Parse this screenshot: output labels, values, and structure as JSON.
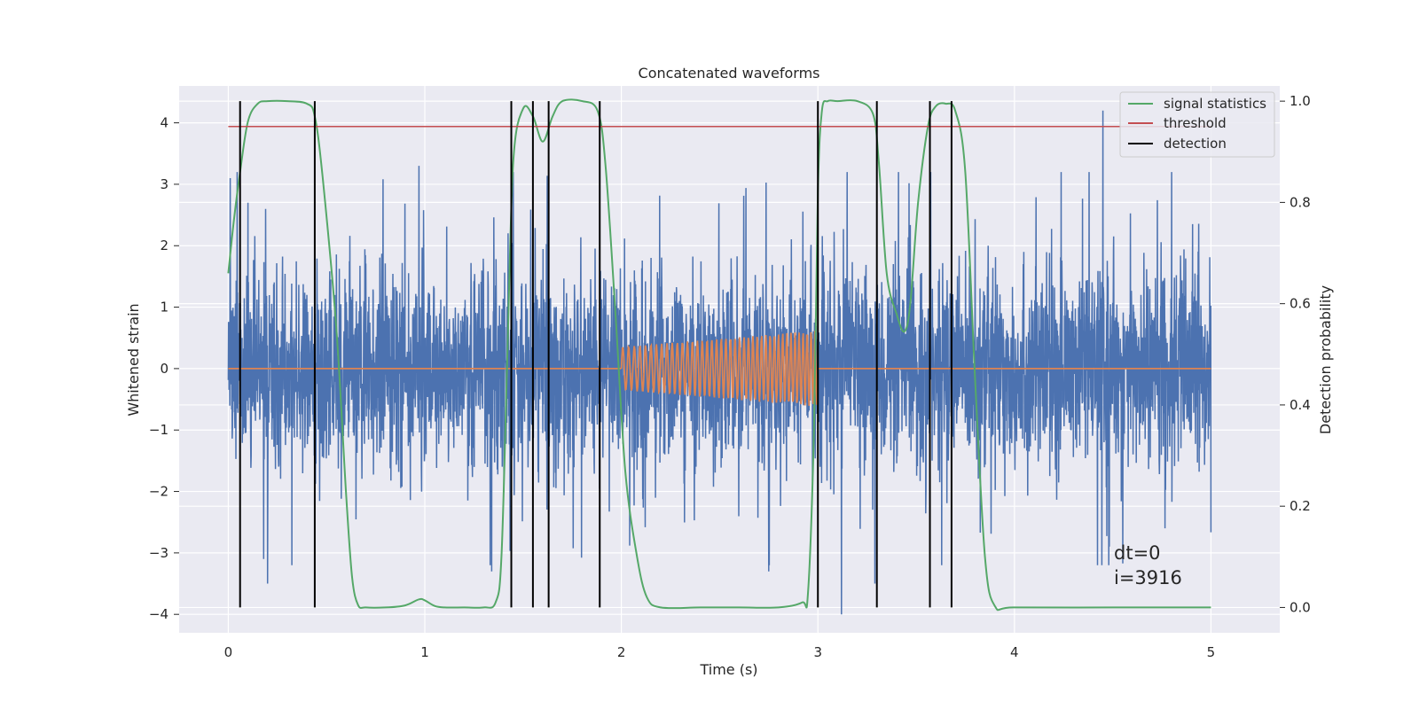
{
  "chart_data": {
    "type": "line",
    "title": "Concatenated waveforms",
    "xlabel": "Time (s)",
    "ylabel": "Whitened strain",
    "y2label": "Detection probability",
    "xlim": [
      -0.25,
      5.35
    ],
    "ylim": [
      -4.3,
      4.6
    ],
    "y2lim": [
      -0.05,
      1.03
    ],
    "xticks": [
      0,
      1,
      2,
      3,
      4,
      5
    ],
    "xtick_labels": [
      "0",
      "1",
      "2",
      "3",
      "4",
      "5"
    ],
    "yticks": [
      4,
      3,
      2,
      1,
      0,
      -1,
      -2,
      -3,
      -4
    ],
    "ytick_labels": [
      "4",
      "3",
      "2",
      "1",
      "0",
      "−1",
      "−2",
      "−3",
      "−4"
    ],
    "y2ticks": [
      1.0,
      0.8,
      0.6,
      0.4,
      0.2,
      0.0
    ],
    "y2tick_labels": [
      "1.0",
      "0.8",
      "0.6",
      "0.4",
      "0.2",
      "0.0"
    ],
    "grid": true,
    "legend_position": "top-right",
    "legend": [
      {
        "label": "signal statistics",
        "color": "#55a868"
      },
      {
        "label": "threshold",
        "color": "#c44e52"
      },
      {
        "label": "detection",
        "color": "#000000"
      }
    ],
    "colors": {
      "strain": "#4c72b0",
      "waveform": "#dd8452",
      "signal_statistics": "#55a868",
      "threshold": "#c44e52",
      "detection": "#000000",
      "background": "#eaeaf2"
    },
    "strain": {
      "x_range": [
        0,
        5
      ],
      "typical_amplitude": 0.9,
      "peaks": [
        {
          "x": 0.01,
          "y": 3.1
        },
        {
          "x": 0.1,
          "y": 2.7
        },
        {
          "x": 0.18,
          "y": -3.1
        },
        {
          "x": 0.19,
          "y": 2.6
        },
        {
          "x": 0.2,
          "y": -3.5
        },
        {
          "x": 0.97,
          "y": 3.3
        },
        {
          "x": 1.34,
          "y": -3.3
        },
        {
          "x": 2.75,
          "y": 3.3
        },
        {
          "x": 2.75,
          "y": -3.3
        },
        {
          "x": 3.12,
          "y": -4.0
        },
        {
          "x": 3.29,
          "y": -3.5
        },
        {
          "x": 4.45,
          "y": 4.2
        },
        {
          "x": 4.8,
          "y": 3.2
        }
      ]
    },
    "waveforms": [
      {
        "x_range": [
          0,
          2.0
        ],
        "amplitude": 0.0
      },
      {
        "x_range": [
          2.0,
          3.0
        ],
        "amplitude_start": 0.35,
        "amplitude_end": 0.62,
        "cycles": 42
      },
      {
        "x_range": [
          3.0,
          5.0
        ],
        "amplitude": 0.0
      }
    ],
    "signal_statistics": {
      "x": [
        0,
        0.03,
        0.06,
        0.1,
        0.15,
        0.2,
        0.3,
        0.4,
        0.44,
        0.48,
        0.55,
        0.6,
        0.63,
        0.66,
        0.7,
        0.8,
        0.9,
        0.97,
        1.0,
        1.05,
        1.1,
        1.2,
        1.3,
        1.36,
        1.39,
        1.42,
        1.45,
        1.5,
        1.55,
        1.6,
        1.65,
        1.7,
        1.8,
        1.88,
        1.92,
        1.97,
        2.02,
        2.08,
        2.13,
        2.2,
        2.4,
        2.6,
        2.8,
        2.92,
        2.95,
        2.98,
        3.0,
        3.02,
        3.05,
        3.1,
        3.2,
        3.28,
        3.31,
        3.35,
        3.4,
        3.44,
        3.47,
        3.51,
        3.56,
        3.6,
        3.65,
        3.7,
        3.75,
        3.8,
        3.85,
        3.9,
        4.0,
        4.5,
        5.0
      ],
      "y": [
        0.66,
        0.77,
        0.86,
        0.96,
        0.995,
        1.0,
        1.0,
        0.995,
        0.97,
        0.85,
        0.55,
        0.22,
        0.06,
        0.005,
        0.0,
        0.0,
        0.004,
        0.016,
        0.014,
        0.003,
        0.0,
        0.0,
        0.0,
        0.01,
        0.1,
        0.5,
        0.88,
        0.985,
        0.97,
        0.92,
        0.97,
        1.0,
        1.0,
        0.98,
        0.87,
        0.58,
        0.27,
        0.1,
        0.02,
        0.0,
        0.0,
        0.0,
        0.0,
        0.01,
        0.03,
        0.35,
        0.82,
        0.98,
        1.0,
        1.0,
        1.0,
        0.975,
        0.88,
        0.66,
        0.58,
        0.545,
        0.6,
        0.8,
        0.95,
        0.99,
        0.995,
        0.98,
        0.86,
        0.45,
        0.1,
        0.003,
        0.0,
        0.0,
        0.0
      ]
    },
    "threshold": {
      "y": 0.95,
      "x_range": [
        0,
        5
      ]
    },
    "detections": [
      0.06,
      0.44,
      1.44,
      1.55,
      1.63,
      1.89,
      3.0,
      3.3,
      3.57,
      3.68
    ],
    "annotations": [
      "dt=0",
      "i=3916"
    ]
  }
}
